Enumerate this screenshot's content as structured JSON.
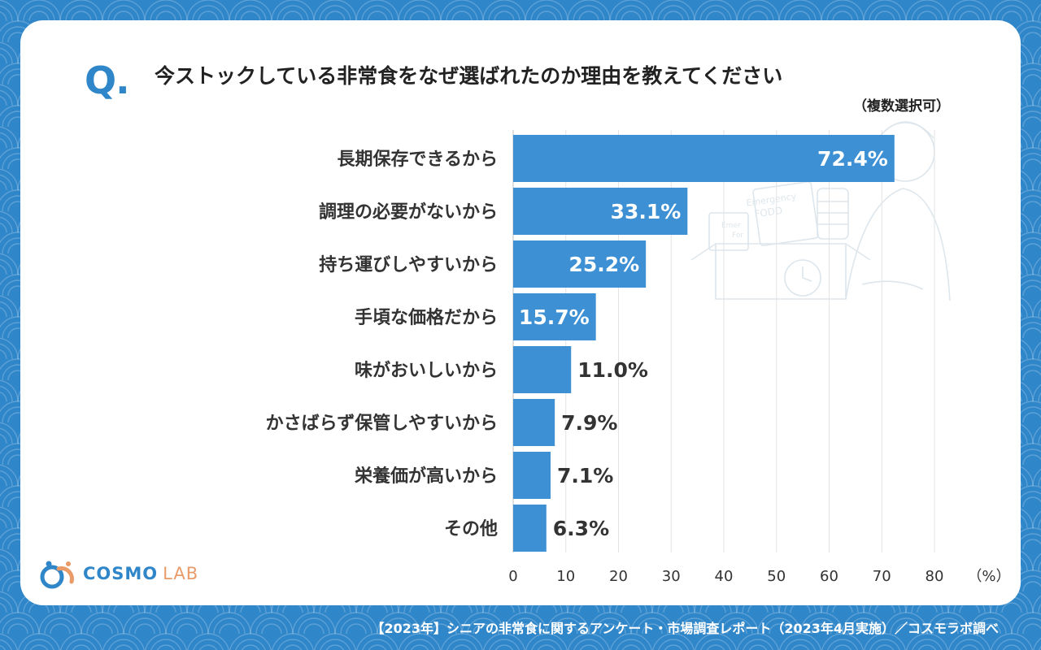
{
  "header": {
    "q_mark": "Q.",
    "question": "今ストックしている非常食をなぜ選ばれたのか理由を教えてください",
    "note": "（複数選択可）"
  },
  "logo": {
    "cosmo": "COSMO",
    "lab": "LAB"
  },
  "footer": {
    "source": "【2023年】シニアの非常食に関するアンケート・市場調査レポート（2023年4月実施）／コスモラボ調べ"
  },
  "colors": {
    "background": "#2f86c9",
    "bar": "#3c90d3",
    "inside_label": "#ffffff",
    "outside_label": "#333333"
  },
  "chart_data": {
    "type": "bar",
    "orientation": "horizontal",
    "categories": [
      "長期保存できるから",
      "調理の必要がないから",
      "持ち運びしやすいから",
      "手頃な価格だから",
      "味がおいしいから",
      "かさばらず保管しやすいから",
      "栄養価が高いから",
      "その他"
    ],
    "values": [
      72.4,
      33.1,
      25.2,
      15.7,
      11.0,
      7.9,
      7.1,
      6.3
    ],
    "value_labels": [
      "72.4%",
      "33.1%",
      "25.2%",
      "15.7%",
      "11.0%",
      "7.9%",
      "7.1%",
      "6.3%"
    ],
    "xlim": [
      0,
      80
    ],
    "xticks": [
      0,
      10,
      20,
      30,
      40,
      50,
      60,
      70,
      80
    ],
    "xunit": "（%）",
    "grid": true
  }
}
